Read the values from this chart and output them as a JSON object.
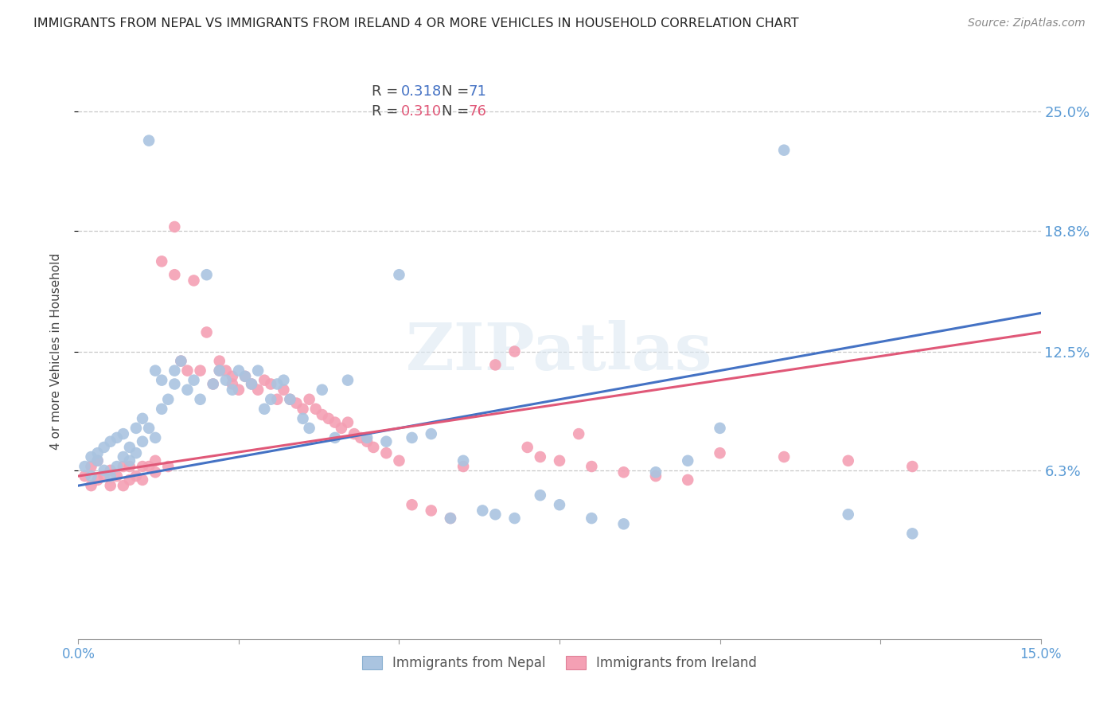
{
  "title": "IMMIGRANTS FROM NEPAL VS IMMIGRANTS FROM IRELAND 4 OR MORE VEHICLES IN HOUSEHOLD CORRELATION CHART",
  "source": "Source: ZipAtlas.com",
  "ylabel": "4 or more Vehicles in Household",
  "ytick_labels": [
    "25.0%",
    "18.8%",
    "12.5%",
    "6.3%"
  ],
  "ytick_vals": [
    0.25,
    0.188,
    0.125,
    0.063
  ],
  "xlim": [
    0.0,
    0.15
  ],
  "ylim": [
    -0.025,
    0.275
  ],
  "nepal_R": 0.318,
  "nepal_N": 71,
  "ireland_R": 0.31,
  "ireland_N": 76,
  "nepal_color": "#aac4e0",
  "ireland_color": "#f4a0b4",
  "nepal_line_color": "#4472C4",
  "ireland_line_color": "#E05878",
  "legend_label_nepal": "Immigrants from Nepal",
  "legend_label_ireland": "Immigrants from Ireland",
  "nepal_line_start_y": 0.055,
  "nepal_line_end_y": 0.145,
  "ireland_line_start_y": 0.06,
  "ireland_line_end_y": 0.135,
  "nepal_scatter_x": [
    0.001,
    0.002,
    0.002,
    0.003,
    0.003,
    0.004,
    0.004,
    0.005,
    0.005,
    0.006,
    0.006,
    0.007,
    0.007,
    0.008,
    0.008,
    0.009,
    0.009,
    0.01,
    0.01,
    0.011,
    0.011,
    0.012,
    0.012,
    0.013,
    0.013,
    0.014,
    0.015,
    0.015,
    0.016,
    0.017,
    0.018,
    0.019,
    0.02,
    0.021,
    0.022,
    0.023,
    0.024,
    0.025,
    0.026,
    0.027,
    0.028,
    0.029,
    0.03,
    0.031,
    0.032,
    0.033,
    0.035,
    0.036,
    0.038,
    0.04,
    0.042,
    0.045,
    0.048,
    0.05,
    0.052,
    0.055,
    0.058,
    0.06,
    0.063,
    0.065,
    0.068,
    0.072,
    0.075,
    0.08,
    0.085,
    0.09,
    0.095,
    0.1,
    0.11,
    0.12,
    0.13
  ],
  "nepal_scatter_y": [
    0.065,
    0.07,
    0.06,
    0.072,
    0.068,
    0.075,
    0.063,
    0.078,
    0.06,
    0.08,
    0.065,
    0.07,
    0.082,
    0.075,
    0.068,
    0.085,
    0.072,
    0.078,
    0.09,
    0.235,
    0.085,
    0.115,
    0.08,
    0.095,
    0.11,
    0.1,
    0.115,
    0.108,
    0.12,
    0.105,
    0.11,
    0.1,
    0.165,
    0.108,
    0.115,
    0.11,
    0.105,
    0.115,
    0.112,
    0.108,
    0.115,
    0.095,
    0.1,
    0.108,
    0.11,
    0.1,
    0.09,
    0.085,
    0.105,
    0.08,
    0.11,
    0.08,
    0.078,
    0.165,
    0.08,
    0.082,
    0.038,
    0.068,
    0.042,
    0.04,
    0.038,
    0.05,
    0.045,
    0.038,
    0.035,
    0.062,
    0.068,
    0.085,
    0.23,
    0.04,
    0.03
  ],
  "ireland_scatter_x": [
    0.001,
    0.002,
    0.002,
    0.003,
    0.003,
    0.004,
    0.005,
    0.005,
    0.006,
    0.007,
    0.007,
    0.008,
    0.008,
    0.009,
    0.01,
    0.01,
    0.011,
    0.012,
    0.012,
    0.013,
    0.014,
    0.015,
    0.015,
    0.016,
    0.017,
    0.018,
    0.019,
    0.02,
    0.021,
    0.022,
    0.022,
    0.023,
    0.024,
    0.024,
    0.025,
    0.026,
    0.027,
    0.028,
    0.029,
    0.03,
    0.031,
    0.032,
    0.033,
    0.034,
    0.035,
    0.036,
    0.037,
    0.038,
    0.039,
    0.04,
    0.041,
    0.042,
    0.043,
    0.044,
    0.045,
    0.046,
    0.048,
    0.05,
    0.052,
    0.055,
    0.058,
    0.06,
    0.065,
    0.068,
    0.07,
    0.072,
    0.075,
    0.078,
    0.08,
    0.085,
    0.09,
    0.095,
    0.1,
    0.11,
    0.12,
    0.13
  ],
  "ireland_scatter_y": [
    0.06,
    0.055,
    0.065,
    0.058,
    0.068,
    0.06,
    0.055,
    0.063,
    0.06,
    0.055,
    0.065,
    0.058,
    0.065,
    0.06,
    0.065,
    0.058,
    0.065,
    0.062,
    0.068,
    0.172,
    0.065,
    0.19,
    0.165,
    0.12,
    0.115,
    0.162,
    0.115,
    0.135,
    0.108,
    0.12,
    0.115,
    0.115,
    0.112,
    0.108,
    0.105,
    0.112,
    0.108,
    0.105,
    0.11,
    0.108,
    0.1,
    0.105,
    0.1,
    0.098,
    0.095,
    0.1,
    0.095,
    0.092,
    0.09,
    0.088,
    0.085,
    0.088,
    0.082,
    0.08,
    0.078,
    0.075,
    0.072,
    0.068,
    0.045,
    0.042,
    0.038,
    0.065,
    0.118,
    0.125,
    0.075,
    0.07,
    0.068,
    0.082,
    0.065,
    0.062,
    0.06,
    0.058,
    0.072,
    0.07,
    0.068,
    0.065
  ]
}
